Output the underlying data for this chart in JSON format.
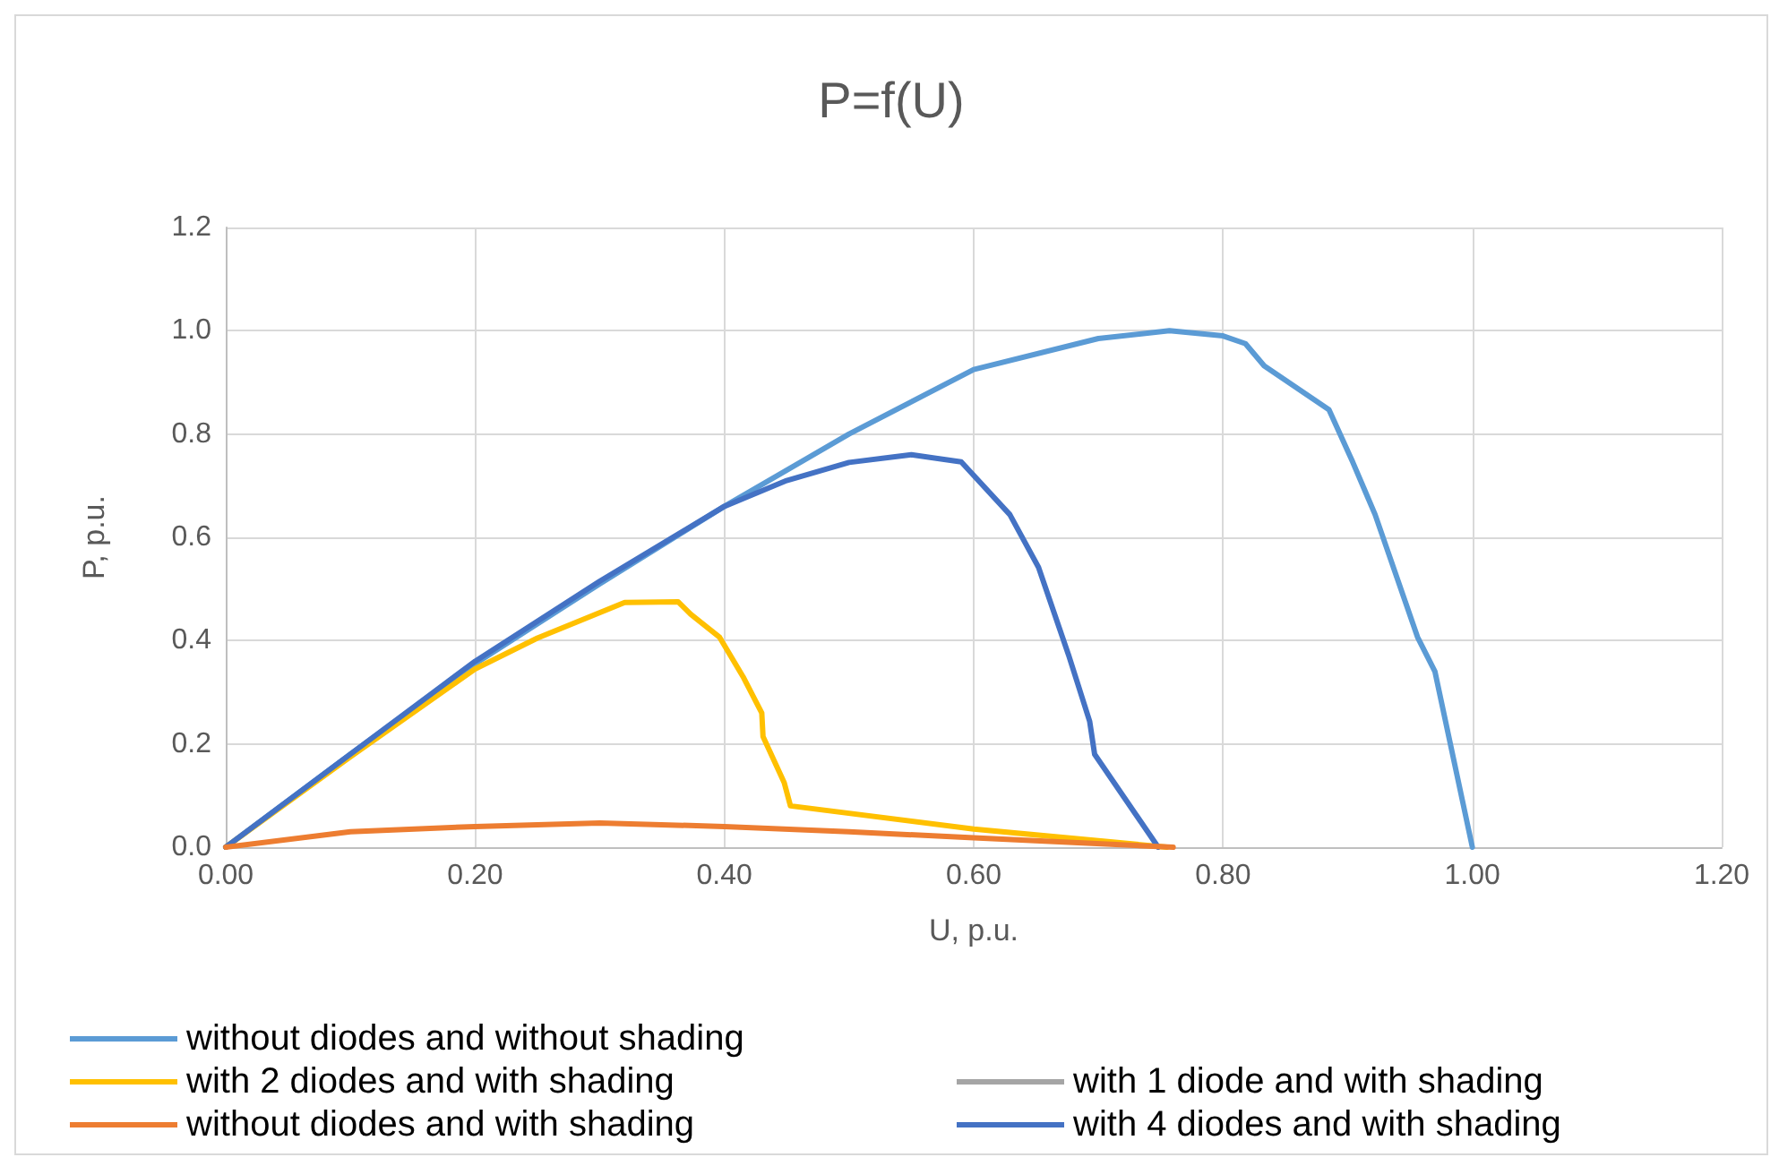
{
  "chart_data": {
    "type": "line",
    "title": "P=f(U)",
    "xlabel": "U, p.u.",
    "ylabel": "P, p.u.",
    "xlim": [
      0,
      1.2
    ],
    "xticks": [
      {
        "value": 0,
        "label": "0.00"
      },
      {
        "value": 0.2,
        "label": "0.20"
      },
      {
        "value": 0.4,
        "label": "0.40"
      },
      {
        "value": 0.6,
        "label": "0.60"
      },
      {
        "value": 0.8,
        "label": "0.80"
      },
      {
        "value": 1,
        "label": "1.00"
      },
      {
        "value": 1.2,
        "label": "1.20"
      }
    ],
    "ylim": [
      0,
      1.2
    ],
    "yticks": [
      {
        "value": 0,
        "label": "0.0"
      },
      {
        "value": 0.2,
        "label": "0.2"
      },
      {
        "value": 0.4,
        "label": "0.4"
      },
      {
        "value": 0.6,
        "label": "0.6"
      },
      {
        "value": 0.8,
        "label": "0.8"
      },
      {
        "value": 1,
        "label": "1.0"
      },
      {
        "value": 1.2,
        "label": "1.2"
      }
    ],
    "grid": true,
    "legend": "bottom",
    "marker": "none",
    "line_style": "solid",
    "series": [
      {
        "name": "without diodes and without shading",
        "color": "#5b9bd5",
        "x": [
          0,
          0.1,
          0.2,
          0.3,
          0.4,
          0.5,
          0.6,
          0.7,
          0.757,
          0.8,
          0.818,
          0.833,
          0.885,
          0.904,
          0.922,
          0.956,
          0.97,
          1.0
        ],
        "values": [
          0,
          0.18,
          0.355,
          0.51,
          0.66,
          0.8,
          0.925,
          0.985,
          1.0,
          0.99,
          0.975,
          0.932,
          0.847,
          0.746,
          0.644,
          0.407,
          0.34,
          0
        ]
      },
      {
        "name": "with 1 diode and with shading",
        "color": "#a5a5a5"
      },
      {
        "name": "with 2 diodes and with shading",
        "color": "#ffc000",
        "x": [
          0,
          0.1,
          0.2,
          0.25,
          0.32,
          0.363,
          0.373,
          0.396,
          0.415,
          0.43,
          0.431,
          0.448,
          0.453,
          0.6,
          0.755
        ],
        "values": [
          0,
          0.175,
          0.345,
          0.405,
          0.474,
          0.475,
          0.451,
          0.407,
          0.33,
          0.26,
          0.214,
          0.125,
          0.08,
          0.035,
          0
        ]
      },
      {
        "name": "with 4 diodes and with shading",
        "color": "#4472c4",
        "x": [
          0,
          0.1,
          0.2,
          0.3,
          0.4,
          0.45,
          0.5,
          0.55,
          0.59,
          0.629,
          0.652,
          0.676,
          0.693,
          0.697,
          0.748
        ],
        "values": [
          0,
          0.18,
          0.36,
          0.515,
          0.66,
          0.71,
          0.745,
          0.76,
          0.746,
          0.644,
          0.542,
          0.373,
          0.244,
          0.18,
          0
        ]
      },
      {
        "name": "without diodes and with shading",
        "color": "#ed7d31",
        "x": [
          0,
          0.1,
          0.2,
          0.3,
          0.4,
          0.5,
          0.6,
          0.76
        ],
        "values": [
          0,
          0.03,
          0.04,
          0.047,
          0.04,
          0.03,
          0.018,
          0
        ]
      }
    ]
  }
}
